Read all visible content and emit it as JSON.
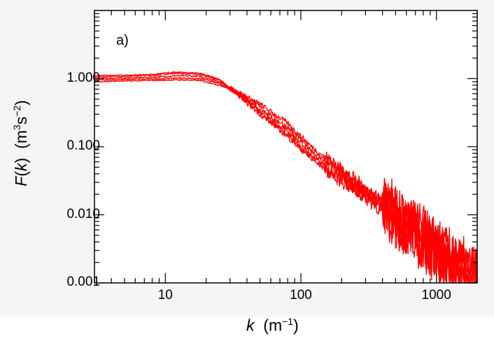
{
  "chart_data": {
    "type": "line",
    "panel_label": "a)",
    "xlabel": {
      "var": "k",
      "unit_base": "m",
      "unit_exp": "−1"
    },
    "ylabel": {
      "var": "F",
      "arg": "k",
      "unit_m_exp": "3",
      "unit_s_exp": "−2"
    },
    "xscale": "log",
    "yscale": "log",
    "xlim": [
      3,
      2000
    ],
    "ylim": [
      0.001,
      10
    ],
    "xticks": [
      10,
      100,
      1000
    ],
    "xtick_labels": [
      "10",
      "100",
      "1000"
    ],
    "yticks": [
      0.001,
      0.01,
      0.1,
      1
    ],
    "ytick_labels": [
      "0.001",
      "0.010",
      "0.100",
      "1.000"
    ],
    "grid": false,
    "line_color": "#ff0000",
    "series": [
      {
        "x": [
          3,
          5,
          8,
          12,
          18,
          25,
          35,
          50,
          80,
          120,
          200,
          300,
          500,
          800,
          1200,
          2000
        ],
        "y": [
          1.05,
          1.08,
          1.12,
          1.2,
          1.15,
          0.95,
          0.58,
          0.32,
          0.15,
          0.07,
          0.035,
          0.02,
          0.009,
          0.004,
          0.002,
          0.001
        ]
      },
      {
        "x": [
          3,
          5,
          8,
          12,
          18,
          25,
          35,
          50,
          80,
          120,
          200,
          300,
          500,
          800,
          1200,
          2000
        ],
        "y": [
          1.0,
          1.02,
          1.05,
          1.1,
          1.08,
          0.9,
          0.6,
          0.34,
          0.17,
          0.08,
          0.038,
          0.021,
          0.0095,
          0.0042,
          0.0021,
          0.0011
        ]
      },
      {
        "x": [
          3,
          5,
          8,
          12,
          18,
          25,
          35,
          50,
          80,
          120,
          200,
          300,
          500,
          800,
          1200,
          2000
        ],
        "y": [
          0.95,
          0.97,
          0.99,
          1.02,
          1.0,
          0.85,
          0.62,
          0.38,
          0.19,
          0.09,
          0.042,
          0.022,
          0.01,
          0.0045,
          0.0022,
          0.0012
        ]
      },
      {
        "x": [
          3,
          5,
          8,
          12,
          18,
          25,
          35,
          50,
          80,
          120,
          200,
          300,
          500,
          800,
          1200,
          2000
        ],
        "y": [
          0.9,
          0.92,
          0.94,
          0.96,
          0.94,
          0.8,
          0.62,
          0.42,
          0.22,
          0.1,
          0.045,
          0.024,
          0.011,
          0.005,
          0.0025,
          0.0013
        ]
      },
      {
        "x": [
          3,
          5,
          8,
          12,
          18,
          25,
          35,
          50,
          80,
          120,
          200,
          300,
          500,
          800,
          1200,
          2000
        ],
        "y": [
          1.1,
          1.12,
          1.15,
          1.25,
          1.2,
          0.98,
          0.56,
          0.3,
          0.14,
          0.065,
          0.032,
          0.018,
          0.0085,
          0.0038,
          0.0019,
          0.001
        ]
      }
    ]
  }
}
